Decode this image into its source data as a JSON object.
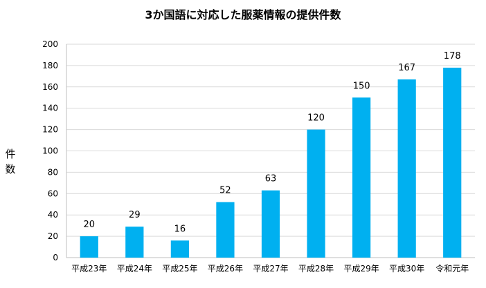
{
  "chart_data": {
    "type": "bar",
    "title": "3か国語に対応した服薬情報の提供件数",
    "xlabel": "",
    "ylabel": "件数",
    "categories": [
      "平成23年",
      "平成24年",
      "平成25年",
      "平成26年",
      "平成27年",
      "平成28年",
      "平成29年",
      "平成30年",
      "令和元年"
    ],
    "values": [
      20,
      29,
      16,
      52,
      63,
      120,
      150,
      167,
      178
    ],
    "ylim": [
      0,
      200
    ],
    "yticks": [
      0,
      20,
      40,
      60,
      80,
      100,
      120,
      140,
      160,
      180,
      200
    ],
    "grid": true,
    "legend": "none",
    "bar_color": "#00B0F0",
    "grid_color": "#D9D9D9"
  }
}
